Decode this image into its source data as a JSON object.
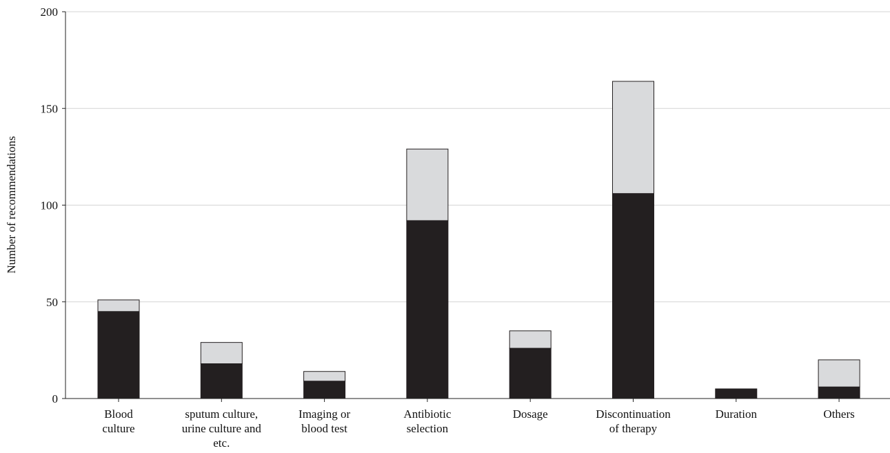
{
  "chart_data": {
    "type": "bar",
    "stacked": true,
    "title": "",
    "xlabel": "",
    "ylabel": "Number of recommendations",
    "ylim": [
      0,
      200
    ],
    "yticks": [
      0,
      50,
      100,
      150,
      200
    ],
    "grid": true,
    "categories": [
      [
        "Blood",
        "culture"
      ],
      [
        "sputum culture,",
        "urine culture and",
        "etc."
      ],
      [
        "Imaging or",
        "blood test"
      ],
      [
        "Antibiotic",
        "selection"
      ],
      [
        "Dosage"
      ],
      [
        "Discontinuation",
        "of therapy"
      ],
      [
        "Duration"
      ],
      [
        "Others"
      ]
    ],
    "series": [
      {
        "color": "#231f20",
        "values": [
          45,
          18,
          9,
          92,
          26,
          106,
          5,
          6
        ]
      },
      {
        "color": "#d9dadc",
        "values": [
          6,
          11,
          5,
          37,
          9,
          58,
          0,
          14
        ]
      }
    ]
  }
}
